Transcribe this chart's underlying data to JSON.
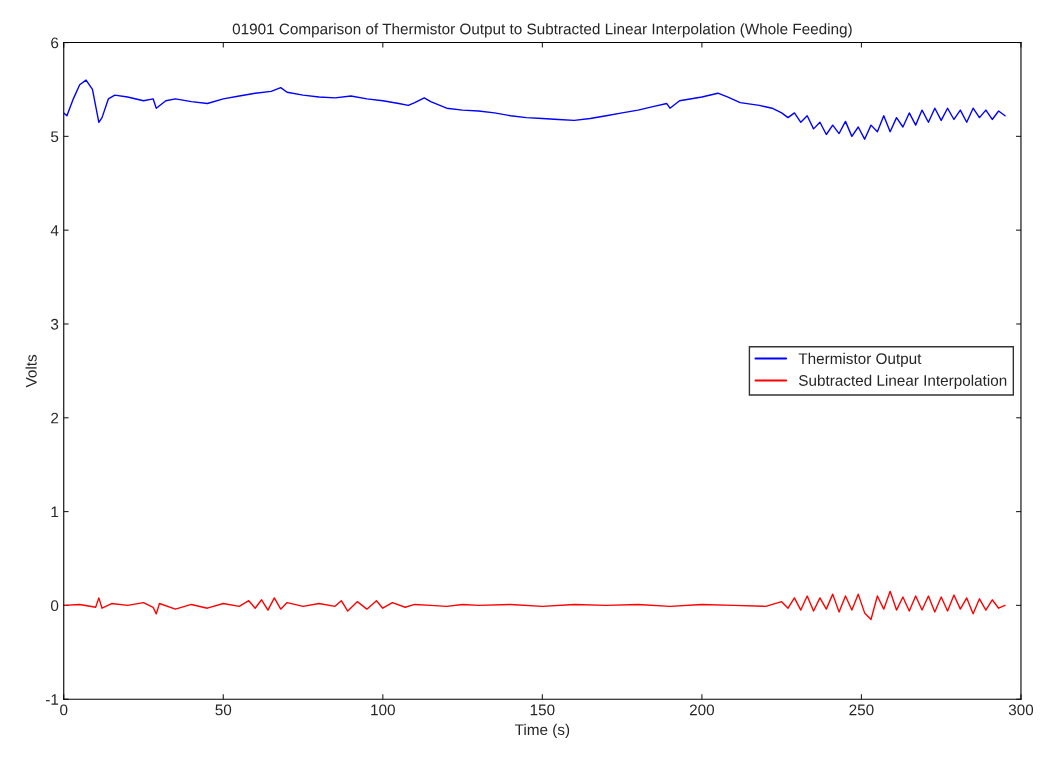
{
  "chart_data": {
    "type": "line",
    "title": "01901 Comparison of Thermistor Output to Subtracted Linear Interpolation (Whole Feeding)",
    "xlabel": "Time (s)",
    "ylabel": "Volts",
    "xlim": [
      0,
      300
    ],
    "xticks": [
      0,
      50,
      100,
      150,
      200,
      250,
      300
    ],
    "ylim": [
      -1,
      6
    ],
    "yticks": [
      -1,
      0,
      1,
      2,
      3,
      4,
      5,
      6
    ],
    "grid": false,
    "legend": "right",
    "line_style": "solid",
    "marker": "none",
    "series": [
      {
        "name": "Thermistor Output",
        "color": "#0000ff",
        "x": [
          0,
          1,
          3,
          5,
          7,
          9,
          11,
          12,
          14,
          16,
          20,
          25,
          28,
          29,
          32,
          35,
          40,
          45,
          50,
          55,
          60,
          65,
          68,
          70,
          75,
          80,
          85,
          90,
          95,
          100,
          105,
          108,
          110,
          113,
          115,
          120,
          125,
          130,
          135,
          140,
          145,
          150,
          155,
          160,
          165,
          170,
          175,
          180,
          185,
          189,
          190,
          193,
          200,
          205,
          208,
          212,
          218,
          222,
          225,
          227,
          229,
          231,
          233,
          235,
          237,
          239,
          241,
          243,
          245,
          247,
          249,
          251,
          253,
          255,
          257,
          259,
          261,
          263,
          265,
          267,
          269,
          271,
          273,
          275,
          277,
          279,
          281,
          283,
          285,
          287,
          289,
          291,
          293,
          295
        ],
        "values": [
          5.25,
          5.22,
          5.4,
          5.55,
          5.6,
          5.5,
          5.15,
          5.2,
          5.4,
          5.44,
          5.42,
          5.38,
          5.4,
          5.3,
          5.38,
          5.4,
          5.37,
          5.35,
          5.4,
          5.43,
          5.46,
          5.48,
          5.52,
          5.47,
          5.44,
          5.42,
          5.41,
          5.43,
          5.4,
          5.38,
          5.35,
          5.33,
          5.36,
          5.41,
          5.37,
          5.3,
          5.28,
          5.27,
          5.25,
          5.22,
          5.2,
          5.19,
          5.18,
          5.17,
          5.19,
          5.22,
          5.25,
          5.28,
          5.32,
          5.35,
          5.3,
          5.38,
          5.42,
          5.46,
          5.42,
          5.36,
          5.33,
          5.3,
          5.25,
          5.2,
          5.25,
          5.15,
          5.22,
          5.08,
          5.15,
          5.02,
          5.12,
          5.03,
          5.16,
          5.0,
          5.1,
          4.97,
          5.12,
          5.05,
          5.22,
          5.05,
          5.2,
          5.1,
          5.25,
          5.12,
          5.28,
          5.15,
          5.3,
          5.17,
          5.3,
          5.18,
          5.28,
          5.15,
          5.3,
          5.2,
          5.28,
          5.18,
          5.27,
          5.22
        ]
      },
      {
        "name": "Subtracted Linear Interpolation",
        "color": "#ff0000",
        "x": [
          0,
          5,
          10,
          11,
          12,
          15,
          20,
          25,
          28,
          29,
          30,
          35,
          40,
          45,
          50,
          55,
          58,
          60,
          62,
          64,
          66,
          68,
          70,
          75,
          80,
          85,
          87,
          89,
          92,
          95,
          98,
          100,
          103,
          107,
          110,
          115,
          120,
          125,
          130,
          140,
          150,
          160,
          170,
          180,
          190,
          200,
          210,
          220,
          225,
          227,
          229,
          231,
          233,
          235,
          237,
          239,
          241,
          243,
          245,
          247,
          249,
          251,
          253,
          255,
          257,
          259,
          261,
          263,
          265,
          267,
          269,
          271,
          273,
          275,
          277,
          279,
          281,
          283,
          285,
          287,
          289,
          291,
          293,
          295
        ],
        "values": [
          0,
          0.01,
          -0.02,
          0.08,
          -0.03,
          0.02,
          0,
          0.03,
          -0.02,
          -0.09,
          0.02,
          -0.04,
          0.01,
          -0.03,
          0.02,
          -0.01,
          0.05,
          -0.03,
          0.06,
          -0.05,
          0.08,
          -0.04,
          0.03,
          -0.01,
          0.02,
          -0.01,
          0.05,
          -0.06,
          0.04,
          -0.04,
          0.05,
          -0.03,
          0.03,
          -0.02,
          0.01,
          0,
          -0.01,
          0.01,
          0,
          0.01,
          -0.01,
          0.01,
          0,
          0.01,
          -0.01,
          0.01,
          0,
          -0.01,
          0.04,
          -0.03,
          0.08,
          -0.05,
          0.1,
          -0.06,
          0.08,
          -0.04,
          0.12,
          -0.07,
          0.1,
          -0.05,
          0.12,
          -0.08,
          -0.15,
          0.1,
          -0.04,
          0.15,
          -0.05,
          0.09,
          -0.06,
          0.1,
          -0.05,
          0.1,
          -0.07,
          0.09,
          -0.06,
          0.11,
          -0.04,
          0.08,
          -0.09,
          0.07,
          -0.05,
          0.06,
          -0.03,
          0.0
        ]
      }
    ]
  }
}
